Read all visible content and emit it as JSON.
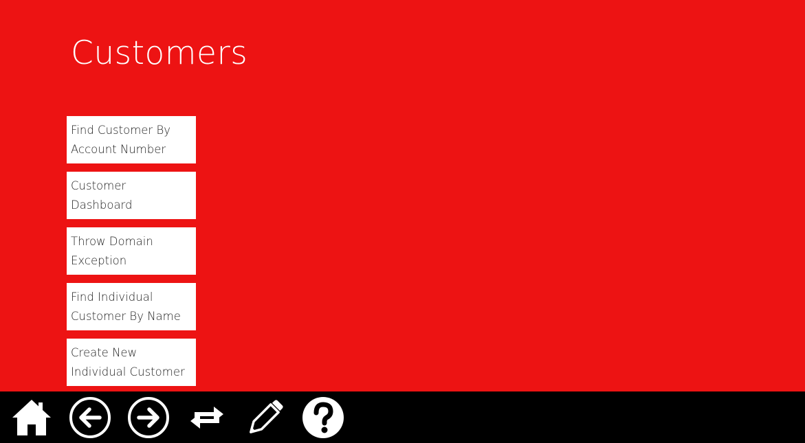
{
  "header": {
    "title": "Customers"
  },
  "actions": [
    {
      "label": "Find Customer By\nAccount Number"
    },
    {
      "label": "Customer\nDashboard"
    },
    {
      "label": "Throw Domain\nException"
    },
    {
      "label": "Find Individual\nCustomer By Name"
    },
    {
      "label": "Create New\nIndividual Customer"
    }
  ],
  "app_bar": {
    "buttons": [
      {
        "icon": "home-icon"
      },
      {
        "icon": "back-arrow-icon"
      },
      {
        "icon": "forward-arrow-icon"
      },
      {
        "icon": "refresh-swap-icon"
      },
      {
        "icon": "pencil-icon"
      },
      {
        "icon": "help-question-icon"
      }
    ]
  },
  "colors": {
    "background": "#ed1313",
    "tile": "#ffffff",
    "app_bar": "#000000",
    "title_text": "#ffffff",
    "tile_text": "#222222"
  }
}
